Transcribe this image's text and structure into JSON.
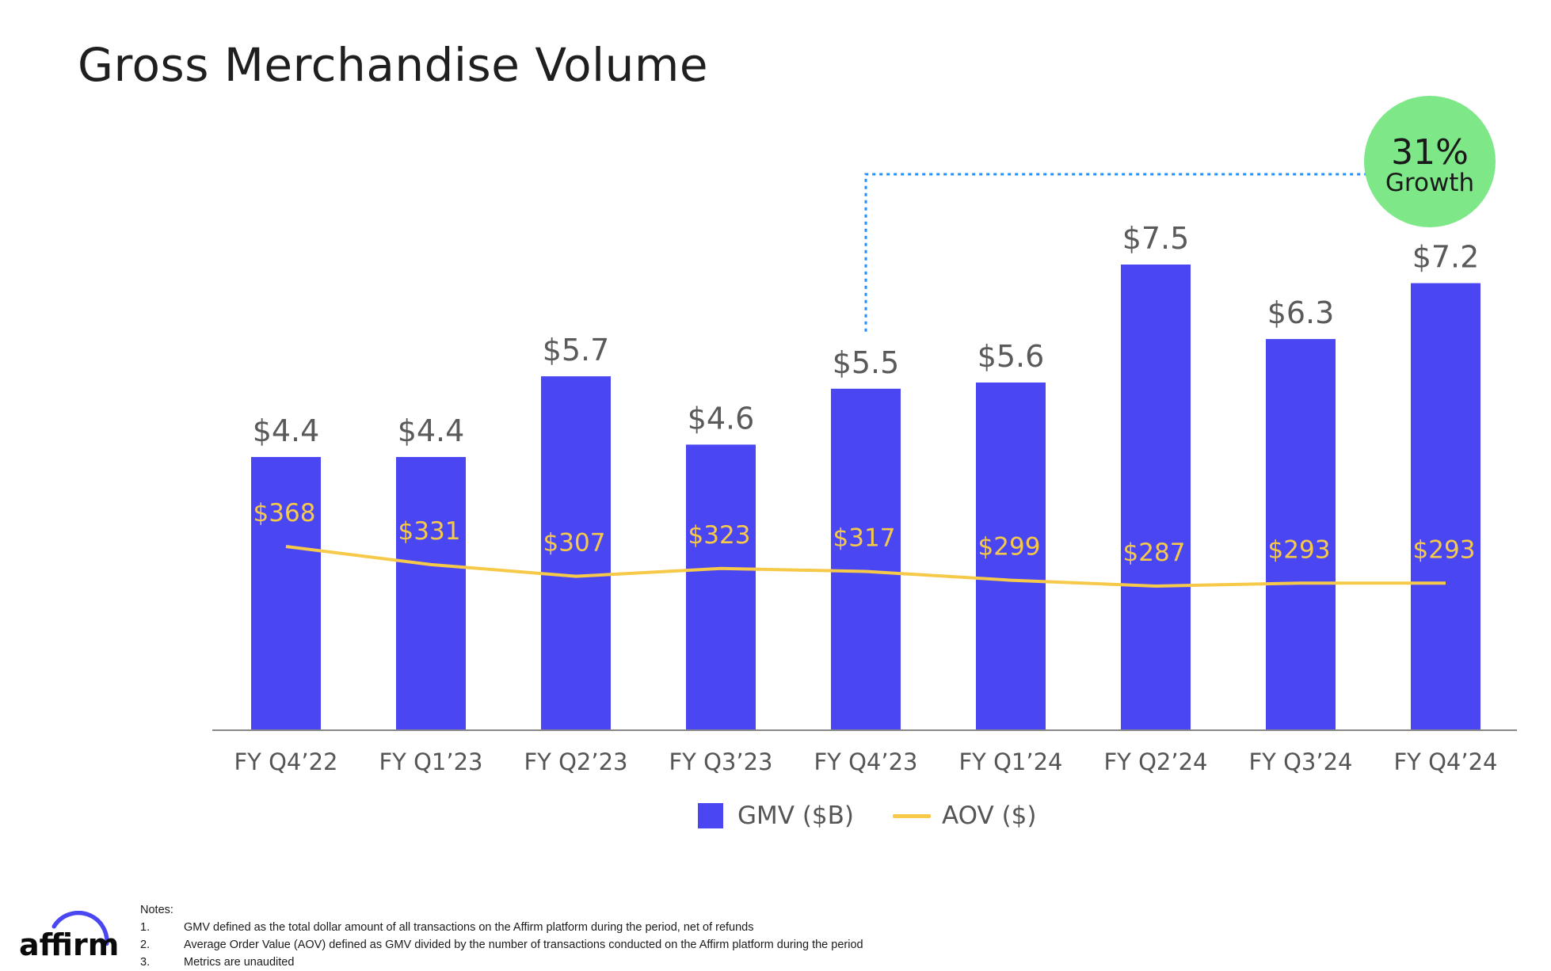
{
  "title": "Gross Merchandise Volume",
  "badge": {
    "value": "31%",
    "text": "Growth",
    "color": "#7ee787"
  },
  "colors": {
    "bar": "#4a47f2",
    "line": "#f7c948",
    "axis": "#888888",
    "dotted": "#1e90ff"
  },
  "chart_data": {
    "type": "bar",
    "categories": [
      "FY Q4’22",
      "FY Q1’23",
      "FY Q2’23",
      "FY Q3’23",
      "FY Q4’23",
      "FY Q1’24",
      "FY Q2’24",
      "FY Q3’24",
      "FY Q4’24"
    ],
    "series": [
      {
        "name": "GMV ($B)",
        "type": "bar",
        "values": [
          4.4,
          4.4,
          5.7,
          4.6,
          5.5,
          5.6,
          7.5,
          6.3,
          7.2
        ],
        "labels": [
          "$4.4",
          "$4.4",
          "$5.7",
          "$4.6",
          "$5.5",
          "$5.6",
          "$7.5",
          "$6.3",
          "$7.2"
        ]
      },
      {
        "name": "AOV ($)",
        "type": "line",
        "values": [
          368,
          331,
          307,
          323,
          317,
          299,
          287,
          293,
          293
        ],
        "labels": [
          "$368",
          "$331",
          "$307",
          "$323",
          "$317",
          "$299",
          "$287",
          "$293",
          "$293"
        ]
      }
    ],
    "comparison": {
      "from_index": 4,
      "to_index": 8,
      "label": "31% Growth"
    },
    "legend_position": "bottom-center",
    "grid": false
  },
  "legend": {
    "bar_label": "GMV ($B)",
    "line_label": "AOV ($)"
  },
  "logo": {
    "text": "affirm",
    "icon": "affirm-arc-logo"
  },
  "notes": {
    "heading": "Notes:",
    "items": [
      {
        "num": "1.",
        "text": "GMV defined as the total dollar amount of all transactions on the Affirm platform during the period, net of refunds"
      },
      {
        "num": "2.",
        "text": "Average Order Value (AOV) defined as GMV divided by the number of transactions conducted on the Affirm platform during the period"
      },
      {
        "num": "3.",
        "text": "Metrics are unaudited"
      }
    ]
  }
}
